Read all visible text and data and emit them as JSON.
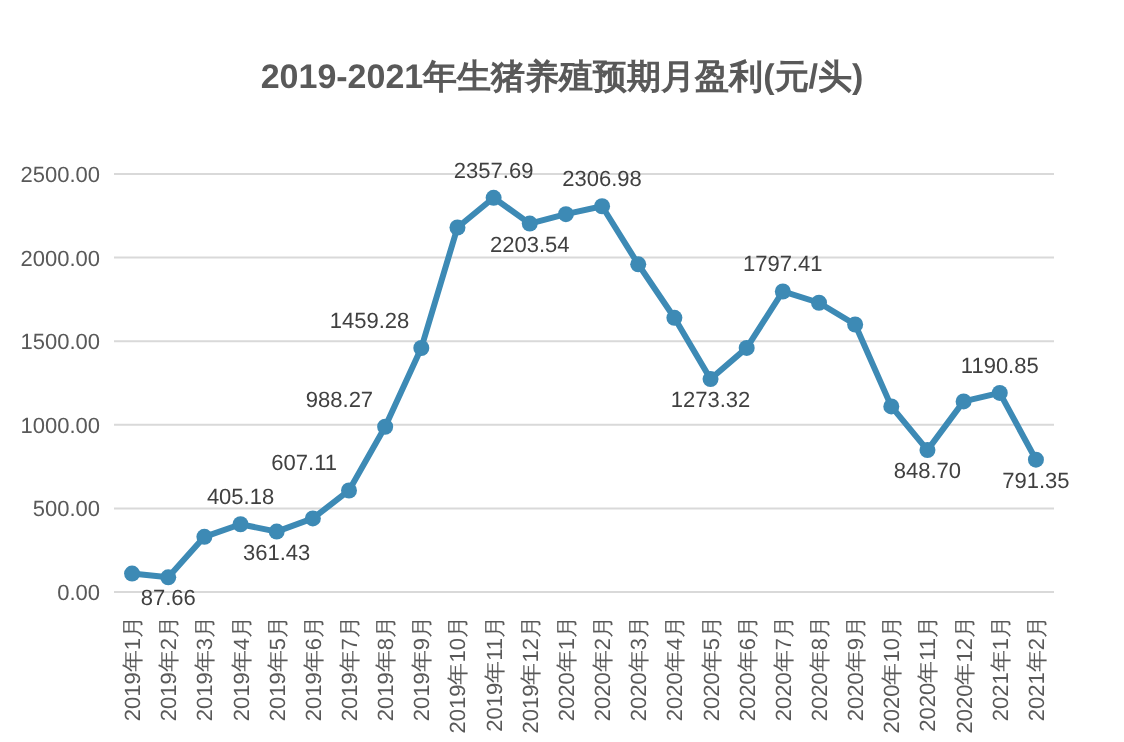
{
  "chart_data": {
    "type": "line",
    "title": "2019-2021年生猪养殖预期月盈利(元/头)",
    "categories": [
      "2019年1月",
      "2019年2月",
      "2019年3月",
      "2019年4月",
      "2019年5月",
      "2019年6月",
      "2019年7月",
      "2019年8月",
      "2019年9月",
      "2019年10月",
      "2019年11月",
      "2019年12月",
      "2020年1月",
      "2020年2月",
      "2020年3月",
      "2020年4月",
      "2020年5月",
      "2020年6月",
      "2020年7月",
      "2020年8月",
      "2020年9月",
      "2020年10月",
      "2020年11月",
      "2020年12月",
      "2021年1月",
      "2021年2月"
    ],
    "series": [
      {
        "color": "#3d8ab5",
        "values": [
          110,
          87.66,
          330,
          405.18,
          361.43,
          440,
          607.11,
          988.27,
          1459.28,
          2180,
          2357.69,
          2203.54,
          2260,
          2306.98,
          1960,
          1640,
          1273.32,
          1460,
          1797.41,
          1730,
          1600,
          1110,
          848.7,
          1140,
          1190.85,
          791.35
        ],
        "value_labels": [
          null,
          "87.66",
          null,
          "405.18",
          "361.43",
          null,
          "607.11",
          "988.27",
          "1459.28",
          null,
          "2357.69",
          "2203.54",
          null,
          "2306.98",
          null,
          null,
          "1273.32",
          null,
          "1797.41",
          null,
          null,
          null,
          "848.70",
          null,
          "1190.85",
          "791.35"
        ]
      }
    ],
    "ylim": [
      0,
      2500
    ],
    "yticks": [
      {
        "value": 0,
        "label": "0.00"
      },
      {
        "value": 500,
        "label": "500.00"
      },
      {
        "value": 1000,
        "label": "1000.00"
      },
      {
        "value": 1500,
        "label": "1500.00"
      },
      {
        "value": 2000,
        "label": "2000.00"
      },
      {
        "value": 2500,
        "label": "2500.00"
      }
    ],
    "grid": "y",
    "marker": "circle",
    "line_style": "solid"
  }
}
